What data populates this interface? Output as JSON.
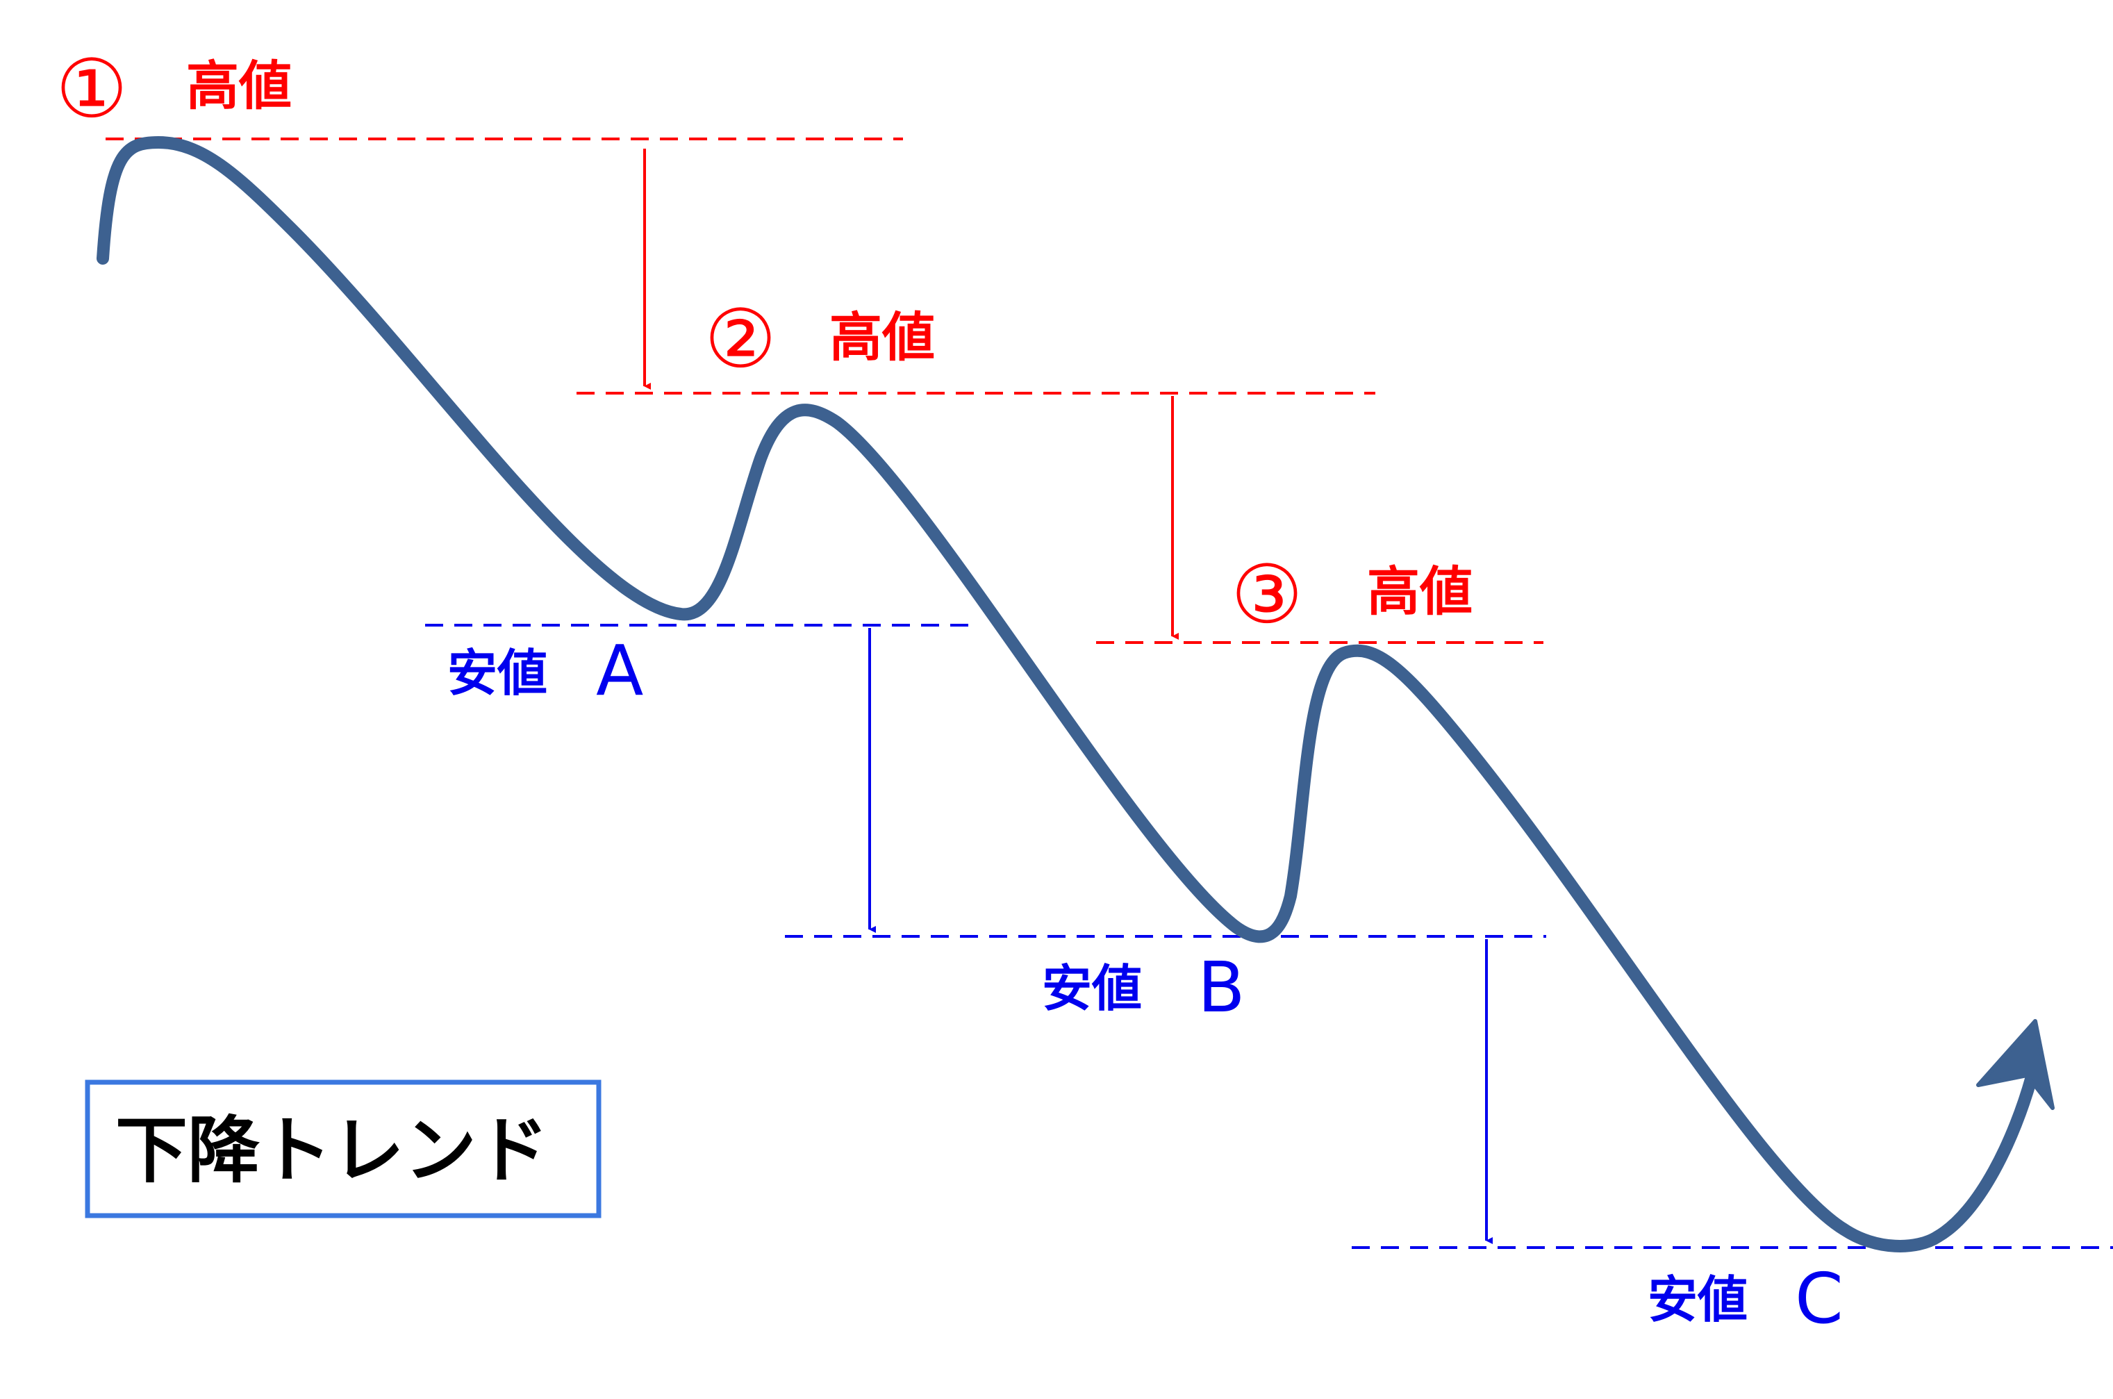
{
  "colors": {
    "high": "#ff0000",
    "low": "#0000ee",
    "price_line": "#3d6190",
    "title_border": "#3b78e0",
    "title_text": "#000000"
  },
  "highs": [
    {
      "number": "①",
      "label": "高値"
    },
    {
      "number": "②",
      "label": "高値"
    },
    {
      "number": "③",
      "label": "高値"
    }
  ],
  "lows": [
    {
      "label": "安値",
      "letter": "A"
    },
    {
      "label": "安値",
      "letter": "B"
    },
    {
      "label": "安値",
      "letter": "C"
    }
  ],
  "title": "下降トレンド"
}
